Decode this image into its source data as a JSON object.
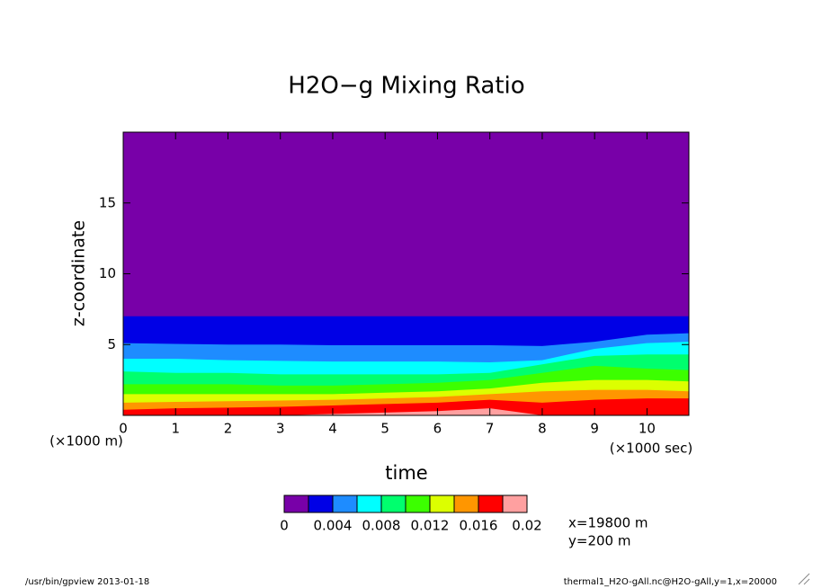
{
  "chart_data": {
    "type": "contour",
    "title": "H2O−g Mixing Ratio",
    "x_label": "time",
    "x_unit": "(×1000 sec)",
    "y_label": "z-coordinate",
    "y_unit": "(×1000 m)",
    "x": [
      0,
      1,
      2,
      3,
      4,
      5,
      6,
      7,
      8,
      9,
      10,
      10.8
    ],
    "series": [
      {
        "values": [
          7,
          7,
          7,
          7,
          7,
          7,
          7,
          7,
          7,
          7,
          7,
          7
        ]
      },
      {
        "values": [
          5.1,
          5.05,
          5.0,
          5.0,
          4.95,
          4.95,
          4.95,
          4.95,
          4.9,
          5.2,
          5.7,
          5.8
        ]
      },
      {
        "values": [
          4.0,
          4.0,
          3.9,
          3.85,
          3.8,
          3.8,
          3.8,
          3.75,
          3.9,
          4.7,
          5.1,
          5.2
        ]
      },
      {
        "values": [
          3.1,
          3.0,
          3.0,
          2.9,
          2.9,
          2.9,
          2.9,
          3.0,
          3.6,
          4.2,
          4.3,
          4.3
        ]
      },
      {
        "values": [
          2.2,
          2.2,
          2.2,
          2.1,
          2.1,
          2.2,
          2.3,
          2.5,
          3.0,
          3.5,
          3.3,
          3.2
        ]
      },
      {
        "values": [
          1.5,
          1.5,
          1.5,
          1.5,
          1.5,
          1.6,
          1.7,
          1.9,
          2.3,
          2.5,
          2.5,
          2.4
        ]
      },
      {
        "values": [
          0.9,
          0.95,
          1.0,
          1.05,
          1.1,
          1.2,
          1.3,
          1.5,
          1.7,
          1.8,
          1.8,
          1.7
        ]
      },
      {
        "values": [
          0.4,
          0.5,
          0.55,
          0.6,
          0.7,
          0.8,
          0.9,
          1.1,
          0.9,
          1.1,
          1.2,
          1.2
        ]
      },
      {
        "values": [
          0,
          0,
          0,
          0,
          0.1,
          0.2,
          0.3,
          0.5,
          0,
          0,
          0,
          0
        ]
      }
    ],
    "xlim": [
      0,
      10.8
    ],
    "xticks": [
      0,
      1,
      2,
      3,
      4,
      5,
      6,
      7,
      8,
      9,
      10
    ],
    "ylim": [
      0,
      20
    ],
    "yticks": [
      5,
      10,
      15
    ],
    "colorbar": {
      "levels": [
        0,
        0.002,
        0.004,
        0.006,
        0.008,
        0.01,
        0.012,
        0.014,
        0.016,
        0.018,
        0.02
      ],
      "ticks": [
        0,
        0.004,
        0.008,
        0.012,
        0.016,
        0.02
      ],
      "colors": [
        "#7800a8",
        "#0000e6",
        "#1e8cff",
        "#00ffff",
        "#00ff6e",
        "#3cff00",
        "#dcff00",
        "#ff9600",
        "#ff0000",
        "#ffa0a0"
      ]
    },
    "annotations": [
      "x=19800 m",
      "y=200 m"
    ],
    "footer_left": "/usr/bin/gpview  2013-01-18",
    "footer_right": "thermal1_H2O-gAll.nc@H2O-gAll,y=1,x=20000"
  }
}
